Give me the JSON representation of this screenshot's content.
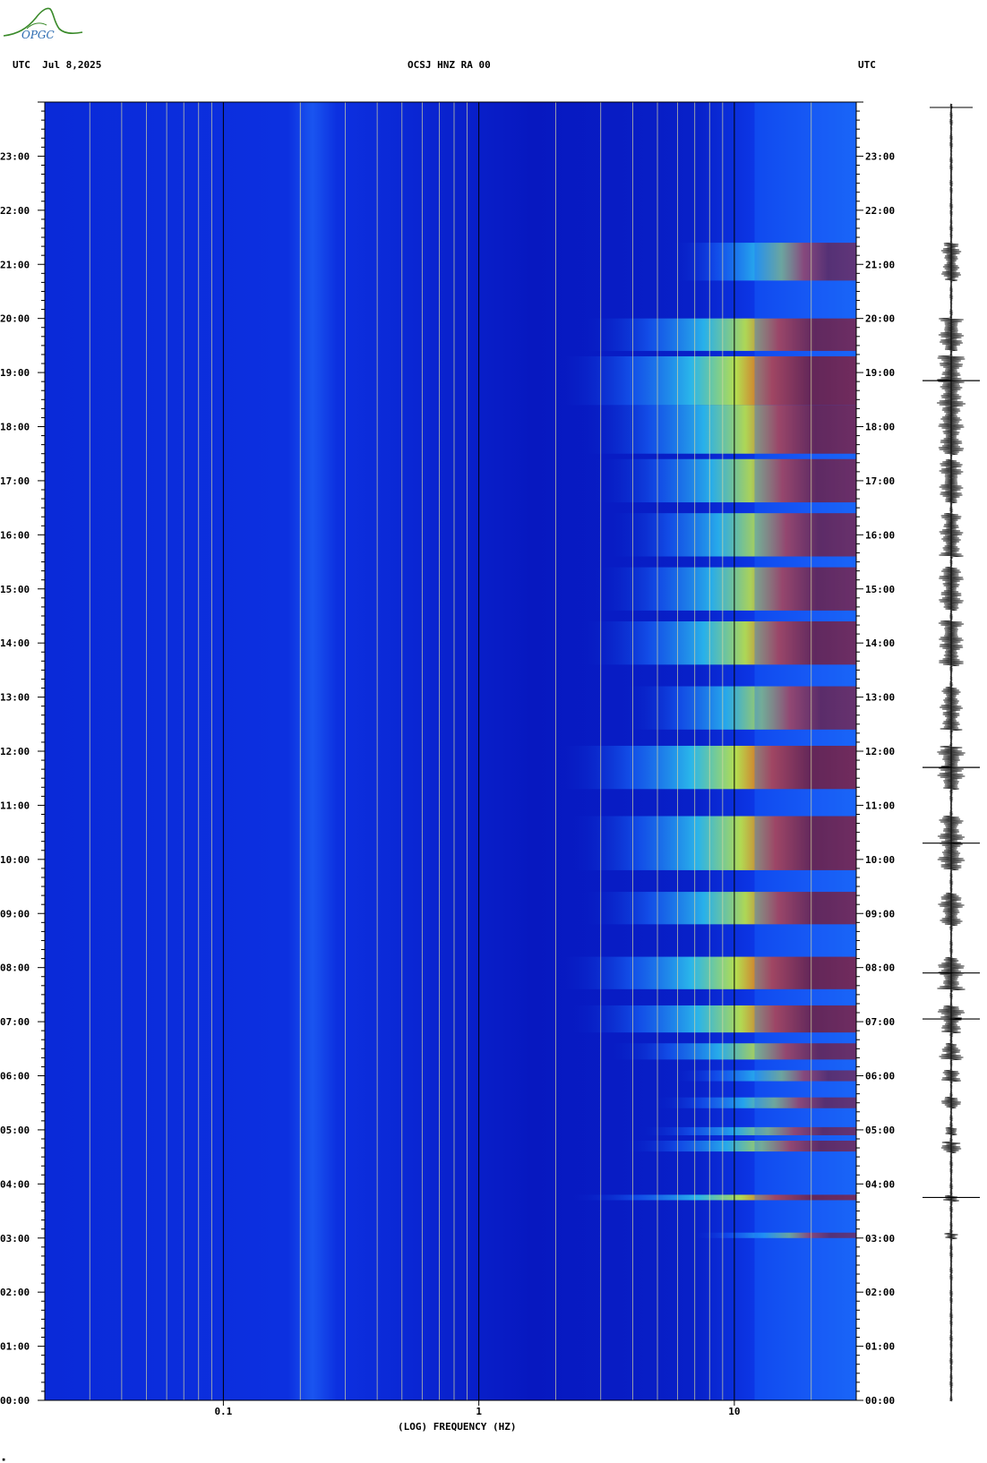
{
  "header": {
    "left": "UTC  Jul 8,2025",
    "center": "OCSJ HNZ RA 00",
    "right": "UTC"
  },
  "logo": {
    "text": "OPGC",
    "color": "#3a8a2a"
  },
  "colors": {
    "background_low": "#0a1fd0",
    "mid": "#1a7fff",
    "cyan": "#30e0e0",
    "yellow": "#f0f030",
    "red": "#c81010",
    "darkred": "#8a0000",
    "gridline": "#d8d8a0"
  },
  "chart_data": {
    "type": "heatmap",
    "title": "OCSJ HNZ RA 00",
    "xlabel": "(LOG) FREQUENCY (HZ)",
    "ylabel": "UTC",
    "x_scale": "log",
    "xlim": [
      0.02,
      30
    ],
    "x_ticks": [
      {
        "value": 0.1,
        "label": "0.1"
      },
      {
        "value": 1,
        "label": "1"
      },
      {
        "value": 10,
        "label": "10"
      }
    ],
    "y_ticks": [
      "00:00",
      "01:00",
      "02:00",
      "03:00",
      "04:00",
      "05:00",
      "06:00",
      "07:00",
      "08:00",
      "09:00",
      "10:00",
      "11:00",
      "12:00",
      "13:00",
      "14:00",
      "15:00",
      "16:00",
      "17:00",
      "18:00",
      "19:00",
      "20:00",
      "21:00",
      "22:00",
      "23:00"
    ],
    "ylim_hours": [
      0,
      24
    ],
    "gridlines_hz": [
      0.03,
      0.04,
      0.05,
      0.06,
      0.07,
      0.08,
      0.09,
      0.2,
      0.3,
      0.4,
      0.5,
      0.6,
      0.7,
      0.8,
      0.9,
      2,
      3,
      4,
      5,
      6,
      7,
      8,
      9,
      20,
      30
    ],
    "activity_bands": [
      {
        "start": 3.0,
        "end": 3.1,
        "level": 0.55
      },
      {
        "start": 3.7,
        "end": 3.8,
        "level": 0.95
      },
      {
        "start": 4.6,
        "end": 4.8,
        "level": 0.75
      },
      {
        "start": 4.9,
        "end": 5.05,
        "level": 0.7
      },
      {
        "start": 5.4,
        "end": 5.6,
        "level": 0.65
      },
      {
        "start": 5.9,
        "end": 6.1,
        "level": 0.6
      },
      {
        "start": 6.3,
        "end": 6.6,
        "level": 0.8
      },
      {
        "start": 6.8,
        "end": 7.3,
        "level": 0.95
      },
      {
        "start": 7.6,
        "end": 8.2,
        "level": 1.0
      },
      {
        "start": 8.8,
        "end": 9.4,
        "level": 0.9
      },
      {
        "start": 9.8,
        "end": 10.8,
        "level": 0.95
      },
      {
        "start": 11.3,
        "end": 12.1,
        "level": 1.0
      },
      {
        "start": 12.4,
        "end": 13.2,
        "level": 0.75
      },
      {
        "start": 13.6,
        "end": 14.4,
        "level": 0.9
      },
      {
        "start": 14.6,
        "end": 15.4,
        "level": 0.85
      },
      {
        "start": 15.6,
        "end": 16.4,
        "level": 0.8
      },
      {
        "start": 16.6,
        "end": 17.4,
        "level": 0.85
      },
      {
        "start": 17.5,
        "end": 18.4,
        "level": 0.9
      },
      {
        "start": 18.4,
        "end": 19.3,
        "level": 1.0
      },
      {
        "start": 19.4,
        "end": 20.0,
        "level": 0.9
      },
      {
        "start": 20.7,
        "end": 21.4,
        "level": 0.6
      }
    ]
  }
}
